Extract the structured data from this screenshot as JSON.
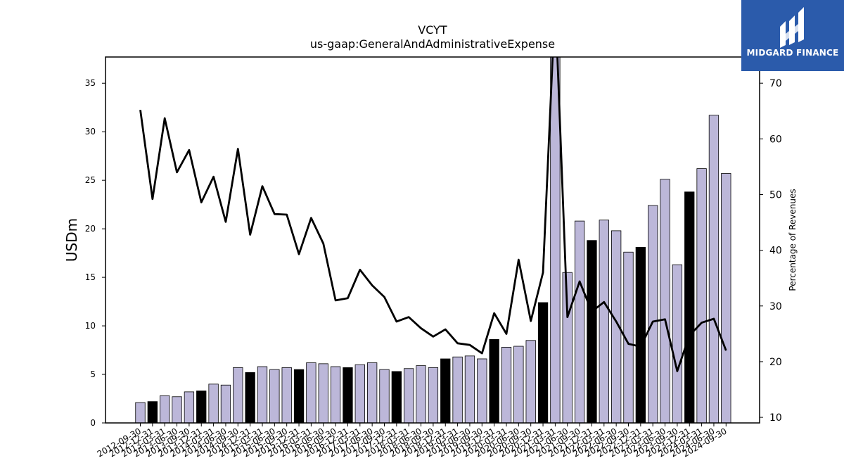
{
  "chart_data": {
    "type": "bar",
    "title": "VCYT",
    "subtitle": "us-gaap:GeneralAndAdministrativeExpense",
    "ylabel": "USDm",
    "ylabel_right": "Percentage of Revenues",
    "ylim": [
      0,
      37.7
    ],
    "ylim_right": [
      9.0,
      74.7
    ],
    "yticks": [
      0,
      5,
      10,
      15,
      20,
      25,
      30,
      35
    ],
    "yticks_right": [
      10,
      20,
      30,
      40,
      50,
      60,
      70
    ],
    "grid": false,
    "categories": [
      "2012-09-30",
      "2012-12-31",
      "2013-03-31",
      "2013-06-30",
      "2013-09-30",
      "2013-12-31",
      "2014-03-31",
      "2014-06-30",
      "2014-09-30",
      "2014-12-31",
      "2015-03-31",
      "2015-06-30",
      "2015-09-30",
      "2015-12-31",
      "2016-03-31",
      "2016-06-30",
      "2016-09-30",
      "2016-12-31",
      "2017-03-31",
      "2017-06-30",
      "2017-09-30",
      "2017-12-31",
      "2018-03-31",
      "2018-06-30",
      "2018-09-30",
      "2018-12-31",
      "2019-03-31",
      "2019-06-30",
      "2019-09-30",
      "2019-12-31",
      "2020-03-31",
      "2020-06-30",
      "2020-09-30",
      "2020-12-31",
      "2021-03-31",
      "2021-06-30",
      "2021-09-30",
      "2021-12-31",
      "2022-03-31",
      "2022-06-30",
      "2022-09-30",
      "2022-12-31",
      "2023-03-31",
      "2023-06-30",
      "2023-09-30",
      "2023-12-31",
      "2024-03-31",
      "2024-06-30",
      "2024-09-30"
    ],
    "series": [
      {
        "type": "bar",
        "values": [
          2.1,
          2.2,
          2.8,
          2.7,
          3.2,
          3.3,
          4.0,
          3.9,
          5.7,
          5.2,
          5.8,
          5.5,
          5.7,
          5.5,
          6.2,
          6.1,
          5.8,
          5.7,
          6.0,
          6.2,
          5.5,
          5.3,
          5.6,
          5.9,
          5.7,
          6.6,
          6.8,
          6.9,
          6.6,
          8.6,
          7.8,
          7.9,
          8.5,
          12.4,
          38.5,
          15.5,
          20.8,
          18.8,
          20.9,
          19.8,
          17.6,
          18.1,
          22.4,
          25.1,
          16.3,
          23.8,
          26.2,
          31.7,
          25.7
        ],
        "colors": [
          "#bcb7d9",
          "#000000",
          "#bcb7d9",
          "#bcb7d9",
          "#bcb7d9",
          "#000000",
          "#bcb7d9",
          "#bcb7d9",
          "#bcb7d9",
          "#000000",
          "#bcb7d9",
          "#bcb7d9",
          "#bcb7d9",
          "#000000",
          "#bcb7d9",
          "#bcb7d9",
          "#bcb7d9",
          "#000000",
          "#bcb7d9",
          "#bcb7d9",
          "#bcb7d9",
          "#000000",
          "#bcb7d9",
          "#bcb7d9",
          "#bcb7d9",
          "#000000",
          "#bcb7d9",
          "#bcb7d9",
          "#bcb7d9",
          "#000000",
          "#bcb7d9",
          "#bcb7d9",
          "#bcb7d9",
          "#000000",
          "#bcb7d9",
          "#bcb7d9",
          "#bcb7d9",
          "#000000",
          "#bcb7d9",
          "#bcb7d9",
          "#bcb7d9",
          "#000000",
          "#bcb7d9",
          "#bcb7d9",
          "#bcb7d9",
          "#000000",
          "#bcb7d9",
          "#bcb7d9",
          "#bcb7d9"
        ]
      },
      {
        "type": "line",
        "axis": "right",
        "color": "#000000",
        "values": [
          65.2,
          49.2,
          63.7,
          54.0,
          58.0,
          48.6,
          53.2,
          45.1,
          58.2,
          42.8,
          51.5,
          46.5,
          46.4,
          39.3,
          45.8,
          41.2,
          31.0,
          31.4,
          36.5,
          33.7,
          31.6,
          27.2,
          28.0,
          26.0,
          24.5,
          25.8,
          23.3,
          23.0,
          21.5,
          28.7,
          25.0,
          38.3,
          27.3,
          36.0,
          85.0,
          28.0,
          34.4,
          29.0,
          30.7,
          27.2,
          23.2,
          22.7,
          27.2,
          27.6,
          18.3,
          24.7,
          27.0,
          27.7,
          22.0
        ]
      }
    ]
  },
  "logo": {
    "text": "MIDGARD FINANCE",
    "background": "#2b5bab"
  }
}
